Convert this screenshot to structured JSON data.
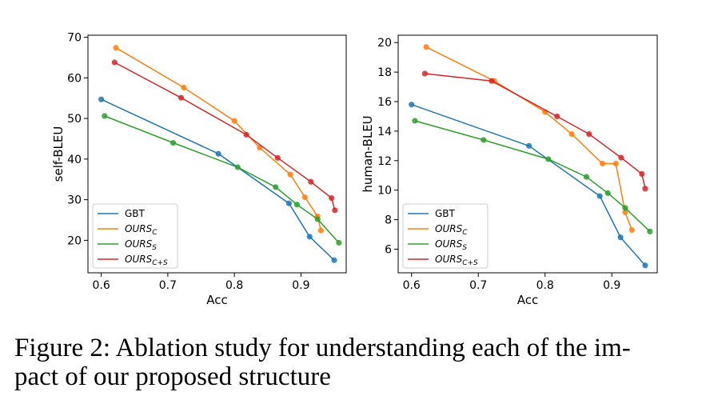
{
  "caption": {
    "line1": "Figure 2: Ablation study for understanding each of the im-",
    "line2": "pact of our proposed structure"
  },
  "chart_data": [
    {
      "type": "line",
      "xlabel": "Acc",
      "ylabel": "self-BLEU",
      "xlim": [
        0.58,
        0.968
      ],
      "ylim": [
        12,
        70.5
      ],
      "xticks": [
        "0.6",
        "0.7",
        "0.8",
        "0.9"
      ],
      "yticks": [
        "20",
        "30",
        "40",
        "50",
        "60",
        "70"
      ],
      "legend_position": "lower-left",
      "series": [
        {
          "name": "GBT",
          "color": "#1f77b4",
          "x": [
            0.6,
            0.776,
            0.882,
            0.913,
            0.95
          ],
          "y": [
            54.7,
            41.3,
            29.1,
            20.9,
            15.1
          ]
        },
        {
          "name": "OURS_C",
          "color": "#ff7f0e",
          "x": [
            0.622,
            0.724,
            0.8,
            0.838,
            0.884,
            0.906,
            0.925,
            0.93
          ],
          "y": [
            67.4,
            57.6,
            49.4,
            42.8,
            36.2,
            30.6,
            25.9,
            22.4
          ]
        },
        {
          "name": "OURS_S",
          "color": "#2ca02c",
          "x": [
            0.605,
            0.708,
            0.805,
            0.862,
            0.894,
            0.925,
            0.957
          ],
          "y": [
            50.6,
            44.0,
            38.0,
            33.1,
            28.8,
            25.2,
            19.4
          ]
        },
        {
          "name": "OURS_{C+S}",
          "color": "#d62728",
          "x": [
            0.62,
            0.72,
            0.818,
            0.865,
            0.915,
            0.946,
            0.951
          ],
          "y": [
            63.8,
            55.1,
            46.0,
            40.3,
            34.4,
            30.4,
            27.4
          ]
        }
      ]
    },
    {
      "type": "line",
      "xlabel": "Acc",
      "ylabel": "human-BLEU",
      "xlim": [
        0.58,
        0.968
      ],
      "ylim": [
        4.4,
        20.5
      ],
      "xticks": [
        "0.6",
        "0.7",
        "0.8",
        "0.9"
      ],
      "yticks": [
        "6",
        "8",
        "10",
        "12",
        "14",
        "16",
        "18",
        "20"
      ],
      "legend_position": "lower-left",
      "series": [
        {
          "name": "GBT",
          "color": "#1f77b4",
          "x": [
            0.6,
            0.776,
            0.882,
            0.913,
            0.95
          ],
          "y": [
            15.8,
            13.0,
            9.6,
            6.8,
            4.9
          ]
        },
        {
          "name": "OURS_C",
          "color": "#ff7f0e",
          "x": [
            0.622,
            0.724,
            0.8,
            0.84,
            0.886,
            0.906,
            0.92,
            0.93
          ],
          "y": [
            19.7,
            17.4,
            15.3,
            13.8,
            11.8,
            11.8,
            8.5,
            7.3
          ]
        },
        {
          "name": "OURS_S",
          "color": "#2ca02c",
          "x": [
            0.605,
            0.708,
            0.805,
            0.862,
            0.894,
            0.92,
            0.957
          ],
          "y": [
            14.7,
            13.4,
            12.1,
            10.9,
            9.8,
            8.8,
            7.2
          ]
        },
        {
          "name": "OURS_{C+S}",
          "color": "#d62728",
          "x": [
            0.62,
            0.72,
            0.818,
            0.866,
            0.914,
            0.945,
            0.95
          ],
          "y": [
            17.9,
            17.4,
            15.0,
            13.8,
            12.2,
            11.1,
            10.1
          ]
        }
      ]
    }
  ]
}
